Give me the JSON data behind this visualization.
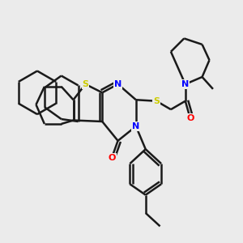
{
  "bg_color": "#ebebeb",
  "atom_colors": {
    "S": "#cccc00",
    "N": "#0000ff",
    "O": "#ff0000",
    "C": "#1a1a1a"
  },
  "bond_color": "#1a1a1a",
  "bond_width": 1.8,
  "figsize": [
    3.0,
    3.0
  ],
  "dpi": 100
}
